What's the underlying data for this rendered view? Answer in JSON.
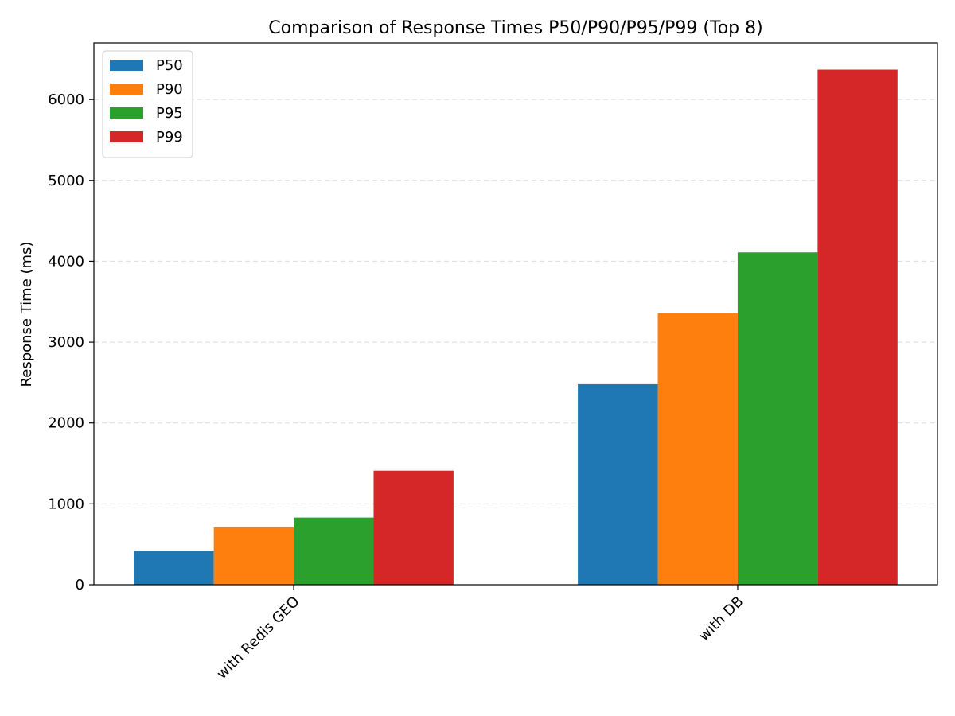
{
  "chart_data": {
    "type": "bar",
    "title": "Comparison of Response Times P50/P90/P95/P99 (Top 8)",
    "xlabel": "",
    "ylabel": "Response Time (ms)",
    "categories": [
      "with Redis GEO",
      "with DB"
    ],
    "series": [
      {
        "name": "P50",
        "color": "#1f77b4",
        "values": [
          420,
          2480
        ]
      },
      {
        "name": "P90",
        "color": "#ff7f0e",
        "values": [
          710,
          3360
        ]
      },
      {
        "name": "P95",
        "color": "#2ca02c",
        "values": [
          830,
          4110
        ]
      },
      {
        "name": "P99",
        "color": "#d62728",
        "values": [
          1410,
          6370
        ]
      }
    ],
    "ylim": [
      0,
      6700
    ],
    "yticks": [
      0,
      1000,
      2000,
      3000,
      4000,
      5000,
      6000
    ],
    "grid": "y-dashed",
    "legend": "top-left"
  }
}
